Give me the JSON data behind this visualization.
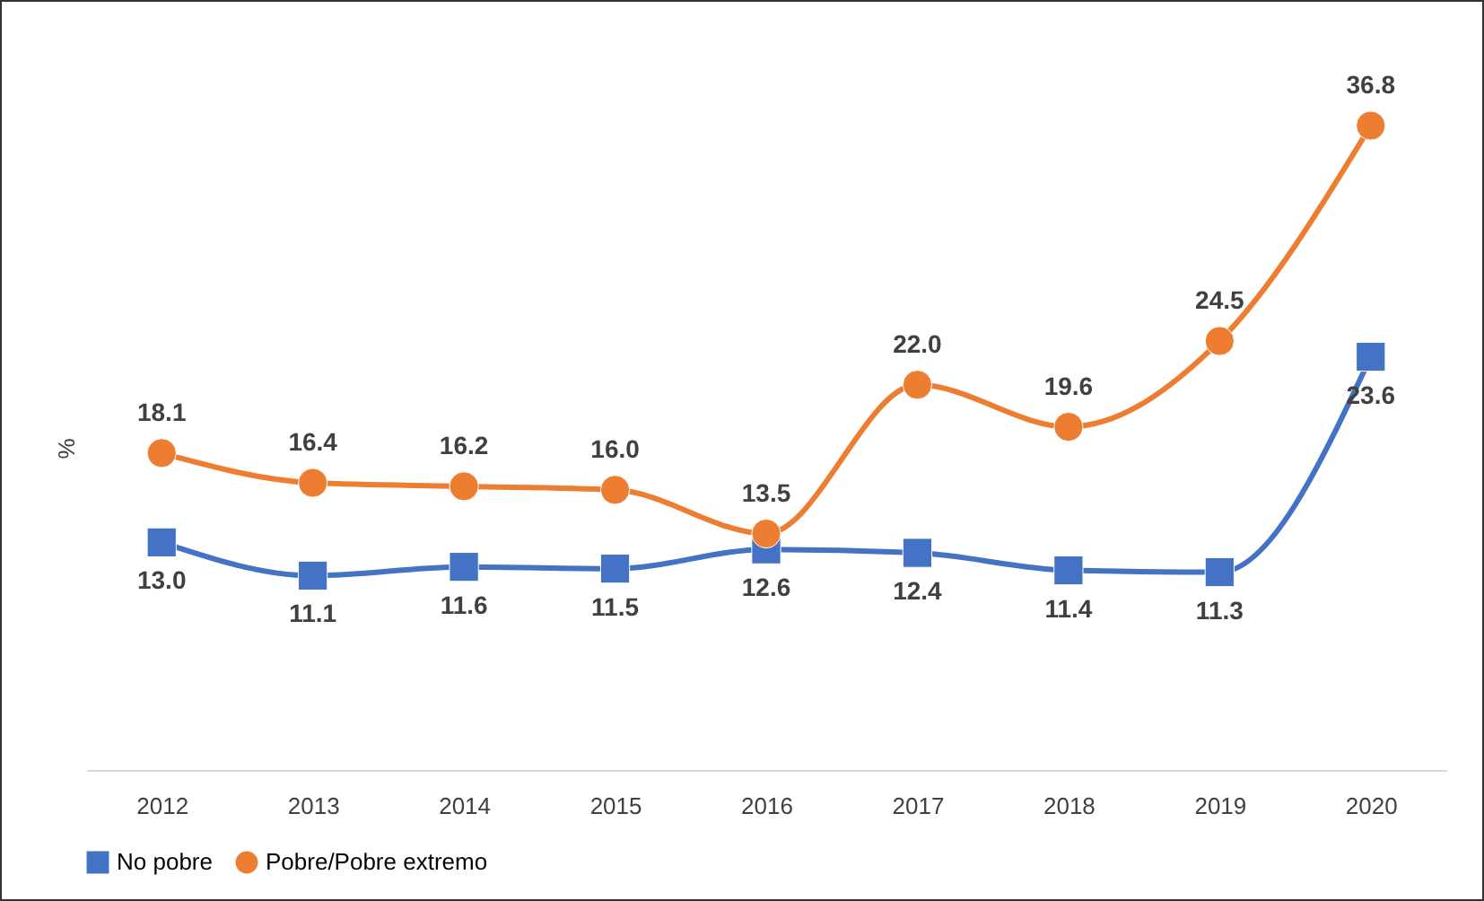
{
  "chart_data": {
    "type": "line",
    "ylabel": "%",
    "categories": [
      "2012",
      "2013",
      "2014",
      "2015",
      "2016",
      "2017",
      "2018",
      "2019",
      "2020"
    ],
    "series": [
      {
        "name": "No pobre",
        "color": "#4472c4",
        "marker": "square",
        "values": [
          13.0,
          11.1,
          11.6,
          11.5,
          12.6,
          12.4,
          11.4,
          11.3,
          23.6
        ],
        "value_labels": [
          "13.0",
          "11.1",
          "11.6",
          "11.5",
          "12.6",
          "12.4",
          "11.4",
          "11.3",
          "23.6"
        ]
      },
      {
        "name": "Pobre/Pobre extremo",
        "color": "#ed7d31",
        "marker": "circle",
        "values": [
          18.1,
          16.4,
          16.2,
          16.0,
          13.5,
          22.0,
          19.6,
          24.5,
          36.8
        ],
        "value_labels": [
          "18.1",
          "16.4",
          "16.2",
          "16.0",
          "13.5",
          "22.0",
          "19.6",
          "24.5",
          "36.8"
        ]
      }
    ],
    "legend": "bottom",
    "grid": false
  }
}
